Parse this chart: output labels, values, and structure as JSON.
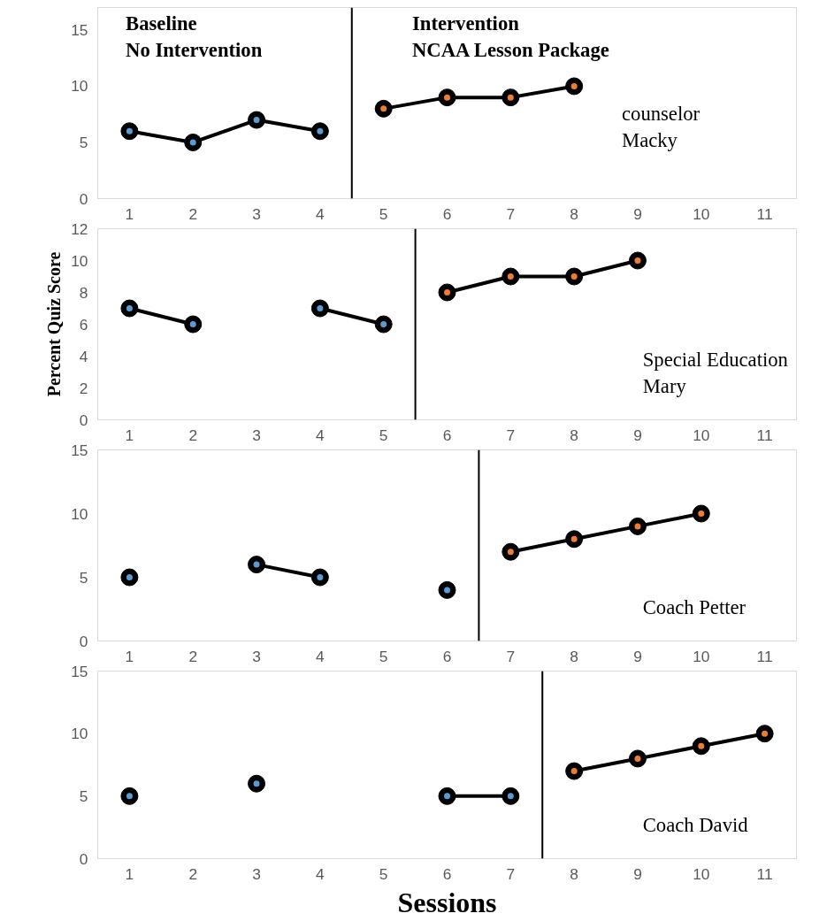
{
  "chart_data": [
    {
      "type": "line",
      "annotations": [
        "Baseline\nNo Intervention",
        "Intervention\nNCAA Lesson Package",
        "counselor\nMacky"
      ],
      "xlim": [
        0.5,
        11.5
      ],
      "xticks": [
        1,
        2,
        3,
        4,
        5,
        6,
        7,
        8,
        9,
        10,
        11
      ],
      "ylim": [
        0,
        17
      ],
      "yticks": [
        0,
        5,
        10,
        15
      ],
      "grid": false,
      "marker": "circle",
      "line_style": "solid",
      "ref_lines": [
        {
          "axis": "x",
          "value": 4.5
        }
      ],
      "series": [
        {
          "color": "#5b9bd5",
          "x": [
            1,
            2,
            3,
            4
          ],
          "values": [
            6,
            5,
            7,
            6
          ]
        },
        {
          "color": "#ed7d31",
          "x": [
            5,
            6,
            7,
            8
          ],
          "values": [
            8,
            9,
            9,
            10
          ]
        }
      ]
    },
    {
      "type": "line",
      "ylabel": "Percent Quiz Score",
      "annotations": [
        "Special Education\nMary"
      ],
      "xlim": [
        0.5,
        11.5
      ],
      "xticks": [
        1,
        2,
        3,
        4,
        5,
        6,
        7,
        8,
        9,
        10,
        11
      ],
      "ylim": [
        0,
        12
      ],
      "yticks": [
        0,
        2,
        4,
        6,
        8,
        10,
        12
      ],
      "grid": false,
      "marker": "circle",
      "line_style": "solid",
      "ref_lines": [
        {
          "axis": "x",
          "value": 5.5
        }
      ],
      "series": [
        {
          "color": "#5b9bd5",
          "x": [
            1,
            2,
            3,
            4,
            5
          ],
          "values": [
            7,
            6,
            null,
            7,
            6
          ]
        },
        {
          "color": "#ed7d31",
          "x": [
            6,
            7,
            8,
            9
          ],
          "values": [
            8,
            9,
            9,
            10
          ]
        }
      ]
    },
    {
      "type": "line",
      "annotations": [
        "Coach Petter"
      ],
      "xlim": [
        0.5,
        11.5
      ],
      "xticks": [
        1,
        2,
        3,
        4,
        5,
        6,
        7,
        8,
        9,
        10,
        11
      ],
      "ylim": [
        0,
        15
      ],
      "yticks": [
        0,
        5,
        10,
        15
      ],
      "grid": false,
      "marker": "circle",
      "line_style": "solid",
      "ref_lines": [
        {
          "axis": "x",
          "value": 6.5
        }
      ],
      "series": [
        {
          "color": "#5b9bd5",
          "x": [
            1,
            2,
            3,
            4,
            5,
            6
          ],
          "values": [
            5,
            null,
            6,
            5,
            null,
            4
          ]
        },
        {
          "color": "#ed7d31",
          "x": [
            7,
            8,
            9,
            10
          ],
          "values": [
            7,
            8,
            9,
            10
          ]
        }
      ]
    },
    {
      "type": "line",
      "xlabel": "Sessions",
      "annotations": [
        "Coach David"
      ],
      "xlim": [
        0.5,
        11.5
      ],
      "xticks": [
        1,
        2,
        3,
        4,
        5,
        6,
        7,
        8,
        9,
        10,
        11
      ],
      "ylim": [
        0,
        15
      ],
      "yticks": [
        0,
        5,
        10,
        15
      ],
      "grid": false,
      "marker": "circle",
      "line_style": "solid",
      "ref_lines": [
        {
          "axis": "x",
          "value": 7.5
        }
      ],
      "series": [
        {
          "color": "#5b9bd5",
          "x": [
            1,
            2,
            3,
            4,
            5,
            6,
            7
          ],
          "values": [
            5,
            null,
            6,
            null,
            null,
            5,
            5
          ]
        },
        {
          "color": "#ed7d31",
          "x": [
            8,
            9,
            10,
            11
          ],
          "values": [
            7,
            8,
            9,
            10
          ]
        }
      ]
    }
  ]
}
